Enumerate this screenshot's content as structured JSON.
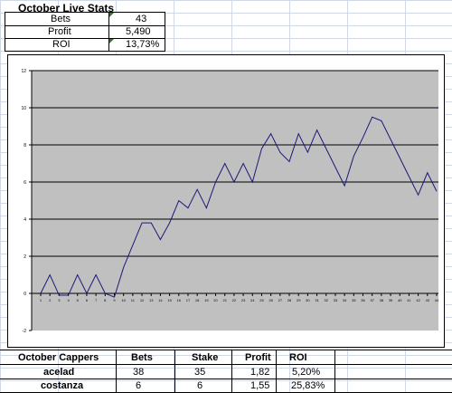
{
  "stats": {
    "title": "October Live Stats",
    "rows": [
      {
        "label": "Bets",
        "value": "43"
      },
      {
        "label": "Profit",
        "value": "5,490"
      },
      {
        "label": "ROI",
        "value": "13,73%"
      }
    ]
  },
  "chart_data": {
    "type": "line",
    "x": [
      1,
      2,
      3,
      4,
      5,
      6,
      7,
      8,
      9,
      10,
      11,
      12,
      13,
      14,
      15,
      16,
      17,
      18,
      19,
      20,
      21,
      22,
      23,
      24,
      25,
      26,
      27,
      28,
      29,
      30,
      31,
      32,
      33,
      34,
      35,
      36,
      37,
      38,
      39,
      40,
      41,
      42,
      43,
      44
    ],
    "series": [
      {
        "values": [
          0,
          1,
          -0.1,
          -0.1,
          1,
          0,
          1,
          0,
          -0.2,
          1.4,
          2.6,
          3.8,
          3.8,
          2.9,
          3.8,
          5,
          4.6,
          5.6,
          4.6,
          6,
          7,
          6,
          7,
          6,
          7.8,
          8.6,
          7.6,
          7.1,
          8.6,
          7.6,
          8.8,
          7.8,
          6.8,
          5.8,
          7.4,
          8.4,
          9.5,
          9.3,
          8.3,
          7.3,
          6.3,
          5.3,
          6.5,
          5.5
        ],
        "color": "#1a1a7a"
      }
    ],
    "ylim": [
      -2,
      12
    ],
    "yticks": [
      "-2",
      "0",
      "2",
      "4",
      "6",
      "8",
      "10",
      "12"
    ],
    "grid": true,
    "plot_bg": "#c0c0c0"
  },
  "cappers": {
    "headers": [
      "October Cappers",
      "Bets",
      "Stake",
      "Profit",
      "ROI"
    ],
    "rows": [
      [
        "acelad",
        "38",
        "35",
        "1,82",
        "5,20%"
      ],
      [
        "costanza",
        "6",
        "6",
        "1,55",
        "25,83%"
      ]
    ]
  }
}
